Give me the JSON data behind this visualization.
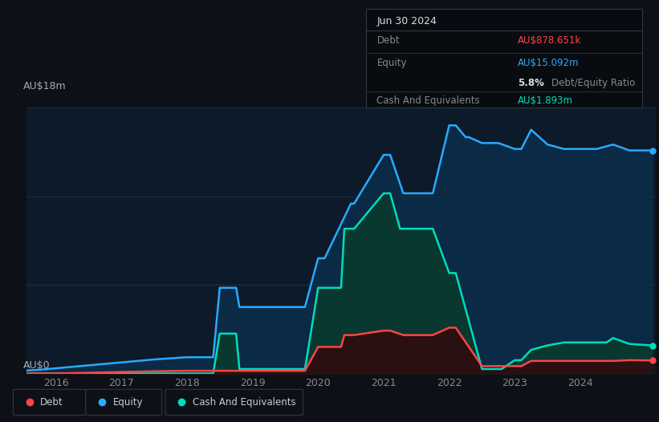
{
  "bg_color": "#0d1117",
  "plot_bg_color": "#0d1a2a",
  "grid_color": "#1e2d40",
  "title_box": {
    "date": "Jun 30 2024",
    "debt_label": "Debt",
    "debt_value": "AU$878.651k",
    "equity_label": "Equity",
    "equity_value": "AU$15.092m",
    "ratio_bold": "5.8%",
    "ratio_text": "Debt/Equity Ratio",
    "cash_label": "Cash And Equivalents",
    "cash_value": "AU$1.893m",
    "debt_color": "#ff4444",
    "equity_color": "#29aaff",
    "cash_color": "#00ddbb"
  },
  "ylabel_top": "AU$18m",
  "ylabel_bottom": "AU$0",
  "ylim": [
    0,
    18
  ],
  "xlim_start": 2015.55,
  "xlim_end": 2025.15,
  "xticks": [
    2016,
    2017,
    2018,
    2019,
    2020,
    2021,
    2022,
    2023,
    2024
  ],
  "equity_color": "#29aaff",
  "equity_fill": "#0a2a45",
  "debt_color": "#ff4444",
  "debt_fill": "#2a1010",
  "cash_color": "#00ddbb",
  "cash_fill": "#083830",
  "equity_x": [
    2015.55,
    2015.75,
    2016.0,
    2016.5,
    2017.0,
    2017.5,
    2018.0,
    2018.4,
    2018.5,
    2018.55,
    2018.75,
    2018.8,
    2019.0,
    2019.1,
    2019.25,
    2019.5,
    2019.75,
    2019.8,
    2020.0,
    2020.1,
    2020.5,
    2020.55,
    2021.0,
    2021.1,
    2021.3,
    2021.35,
    2021.5,
    2021.75,
    2022.0,
    2022.1,
    2022.25,
    2022.3,
    2022.5,
    2022.75,
    2023.0,
    2023.1,
    2023.25,
    2023.5,
    2023.75,
    2024.0,
    2024.25,
    2024.5,
    2024.75,
    2025.1
  ],
  "equity_y": [
    0.2,
    0.25,
    0.35,
    0.55,
    0.75,
    0.95,
    1.1,
    1.1,
    5.8,
    5.8,
    5.8,
    4.5,
    4.5,
    4.5,
    4.5,
    4.5,
    4.5,
    4.5,
    7.8,
    7.8,
    11.5,
    11.5,
    14.8,
    14.8,
    12.2,
    12.2,
    12.2,
    12.2,
    16.8,
    16.8,
    16.0,
    16.0,
    15.6,
    15.6,
    15.2,
    15.2,
    16.5,
    15.5,
    15.2,
    15.2,
    15.2,
    15.5,
    15.1,
    15.1
  ],
  "cash_x": [
    2015.55,
    2016.0,
    2017.0,
    2018.0,
    2018.4,
    2018.5,
    2018.55,
    2018.75,
    2018.8,
    2019.0,
    2019.1,
    2019.75,
    2019.8,
    2020.0,
    2020.1,
    2020.35,
    2020.4,
    2020.5,
    2020.55,
    2021.0,
    2021.1,
    2021.25,
    2021.3,
    2021.5,
    2021.75,
    2022.0,
    2022.1,
    2022.5,
    2022.55,
    2022.75,
    2022.8,
    2023.0,
    2023.1,
    2023.25,
    2023.5,
    2023.75,
    2024.0,
    2024.25,
    2024.4,
    2024.5,
    2024.75,
    2025.1
  ],
  "cash_y": [
    0.0,
    0.0,
    0.0,
    0.0,
    0.0,
    2.7,
    2.7,
    2.7,
    0.3,
    0.3,
    0.3,
    0.3,
    0.3,
    5.8,
    5.8,
    5.8,
    9.8,
    9.8,
    9.8,
    12.2,
    12.2,
    9.8,
    9.8,
    9.8,
    9.8,
    6.8,
    6.8,
    0.3,
    0.3,
    0.3,
    0.3,
    0.9,
    0.9,
    1.6,
    1.9,
    2.1,
    2.1,
    2.1,
    2.1,
    2.4,
    2.0,
    1.9
  ],
  "debt_x": [
    2015.55,
    2016.0,
    2016.5,
    2017.0,
    2017.5,
    2018.0,
    2018.5,
    2018.75,
    2019.0,
    2019.25,
    2019.5,
    2019.75,
    2019.8,
    2020.0,
    2020.1,
    2020.35,
    2020.4,
    2020.5,
    2020.55,
    2021.0,
    2021.1,
    2021.3,
    2021.35,
    2021.5,
    2021.75,
    2022.0,
    2022.1,
    2022.5,
    2022.55,
    2022.75,
    2022.8,
    2023.0,
    2023.1,
    2023.25,
    2023.5,
    2023.75,
    2024.0,
    2024.25,
    2024.5,
    2024.75,
    2025.1
  ],
  "debt_y": [
    0.0,
    0.0,
    0.05,
    0.1,
    0.15,
    0.18,
    0.18,
    0.18,
    0.18,
    0.18,
    0.18,
    0.18,
    0.18,
    1.8,
    1.8,
    1.8,
    2.6,
    2.6,
    2.6,
    2.9,
    2.9,
    2.6,
    2.6,
    2.6,
    2.6,
    3.1,
    3.1,
    0.5,
    0.5,
    0.5,
    0.5,
    0.5,
    0.5,
    0.85,
    0.85,
    0.85,
    0.85,
    0.85,
    0.85,
    0.9,
    0.88
  ],
  "legend": [
    {
      "label": "Debt",
      "color": "#ff4444"
    },
    {
      "label": "Equity",
      "color": "#29aaff"
    },
    {
      "label": "Cash And Equivalents",
      "color": "#00ddbb"
    }
  ]
}
